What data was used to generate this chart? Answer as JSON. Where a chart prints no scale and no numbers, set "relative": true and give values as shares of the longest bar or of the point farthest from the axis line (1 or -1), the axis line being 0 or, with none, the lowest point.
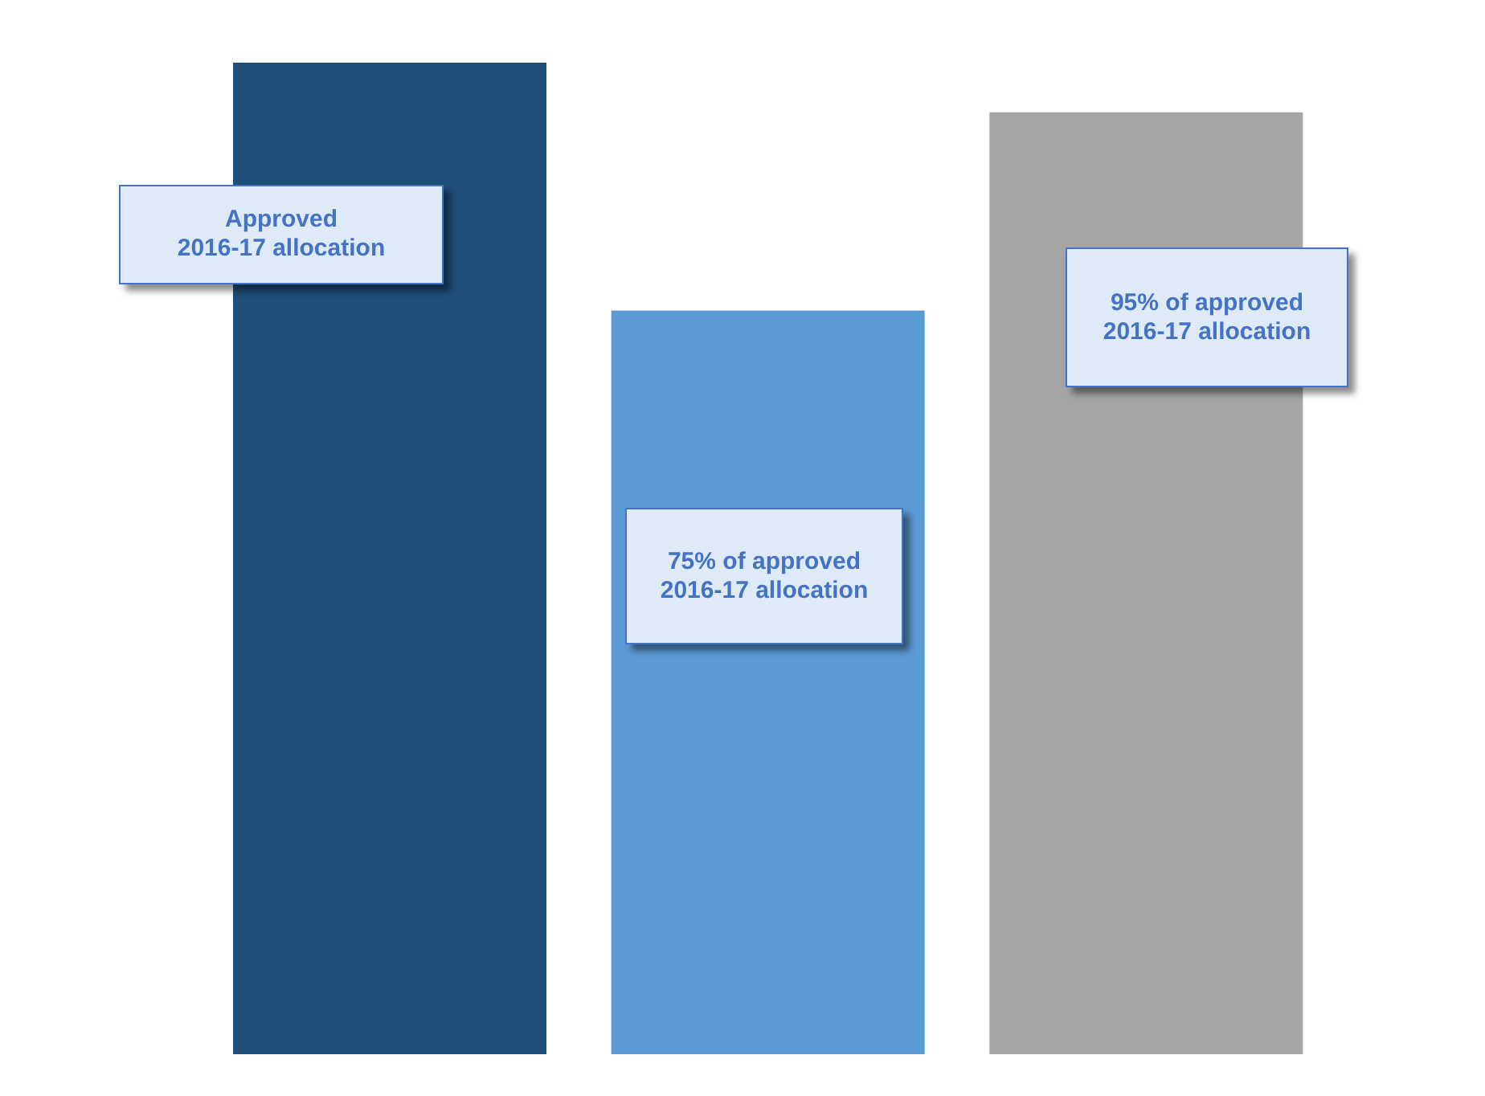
{
  "chart_data": {
    "type": "bar",
    "relative": true,
    "categories": [
      null,
      null,
      null
    ],
    "values": [
      1,
      0.75,
      0.95
    ],
    "colors": [
      "#1f4e79",
      "#5b9bd5",
      "#a5a5a5"
    ],
    "annotations": [
      "Approved\n2016-17 allocation",
      "75% of approved\n2016-17 allocation",
      "95% of approved\n2016-17 allocation"
    ],
    "grid": false,
    "legend": false
  }
}
